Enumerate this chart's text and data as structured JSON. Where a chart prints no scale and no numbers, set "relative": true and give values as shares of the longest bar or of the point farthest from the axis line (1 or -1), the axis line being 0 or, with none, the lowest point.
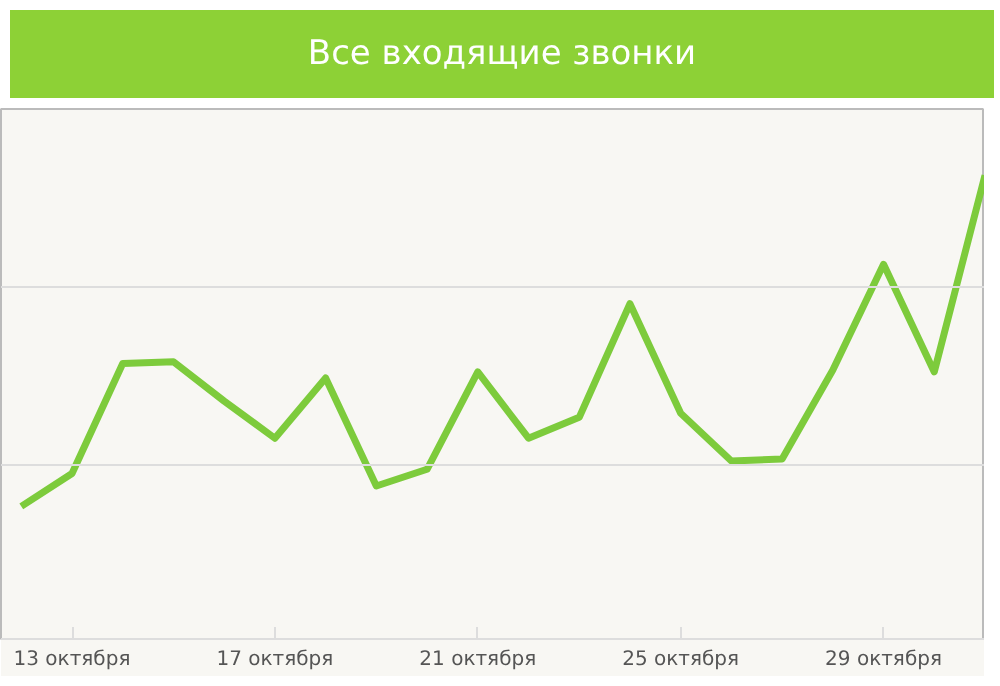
{
  "chart_data": {
    "type": "line",
    "title": "Все входящие звонки",
    "relative": true,
    "x": [
      12,
      13,
      14,
      15,
      16,
      17,
      18,
      19,
      20,
      21,
      22,
      23,
      24,
      25,
      26,
      27,
      28,
      29,
      30,
      31
    ],
    "xlim": [
      11.6,
      31
    ],
    "xticks": [
      {
        "value": 13,
        "label": "13 октября"
      },
      {
        "value": 17,
        "label": "17 октября"
      },
      {
        "value": 21,
        "label": "21 октября"
      },
      {
        "value": 25,
        "label": "25 октября"
      },
      {
        "value": 29,
        "label": "29 октября"
      }
    ],
    "series": [
      {
        "color": "#7dcb3c",
        "values": [
          0.286,
          0.357,
          0.594,
          0.598,
          0.513,
          0.433,
          0.563,
          0.33,
          0.366,
          0.576,
          0.433,
          0.478,
          0.723,
          0.487,
          0.384,
          0.388,
          0.58,
          0.808,
          0.576,
          1
        ]
      }
    ],
    "ref_lines": [
      {
        "axis": "y",
        "value": 0.375,
        "color": "#dddddd"
      },
      {
        "axis": "y",
        "value": 0.759,
        "color": "#dddddd"
      }
    ],
    "marker": "none",
    "line_style": "solid"
  }
}
